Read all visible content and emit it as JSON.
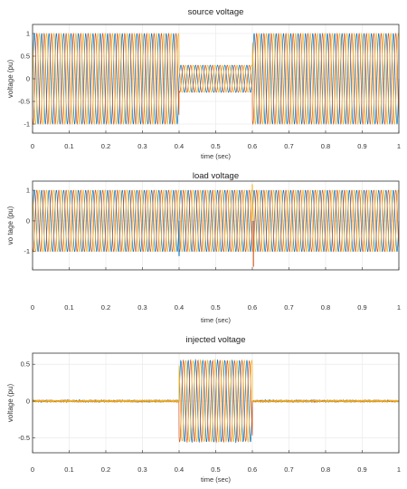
{
  "colors": {
    "phase_a": "#0072BD",
    "phase_b": "#D95319",
    "phase_c": "#EDB120",
    "grid": "#e6e6e6",
    "axis": "#333333"
  },
  "chart_data": [
    {
      "type": "line",
      "title": "source voltage",
      "xlabel": "time (sec)",
      "ylabel": "voltage (pu)",
      "xlim": [
        0,
        1
      ],
      "ylim": [
        -1.2,
        1.2
      ],
      "xticks": [
        0,
        0.1,
        0.2,
        0.3,
        0.4,
        0.5,
        0.6,
        0.7,
        0.8,
        0.9,
        1
      ],
      "xtick_labels": [
        "0",
        "0.1",
        "0.2",
        "0.3",
        "0.4",
        "0.5",
        "0.6",
        "0.7",
        "0.8",
        "0.9",
        "1"
      ],
      "yticks": [
        -1,
        -0.5,
        0,
        0.5,
        1
      ],
      "ytick_labels": [
        "-1",
        "-0.5",
        "0",
        "0.5",
        "1"
      ],
      "grid": true,
      "frequency_hz": 50,
      "phases_deg": [
        0,
        -120,
        120
      ],
      "series_colors": [
        "#0072BD",
        "#D95319",
        "#EDB120"
      ],
      "segments": [
        {
          "from": 0.0,
          "to": 0.4,
          "amplitude": 1.0
        },
        {
          "from": 0.4,
          "to": 0.6,
          "amplitude": 0.3
        },
        {
          "from": 0.6,
          "to": 1.0,
          "amplitude": 1.0
        }
      ],
      "noise": 0,
      "spikes": []
    },
    {
      "type": "line",
      "title": "load voltage",
      "xlabel": "time (sec)",
      "ylabel": "vo tage (pu)",
      "xlim": [
        0,
        1
      ],
      "ylim": [
        -1.6,
        1.3
      ],
      "xticks": [
        0,
        0.1,
        0.2,
        0.3,
        0.4,
        0.5,
        0.6,
        0.7,
        0.8,
        0.9,
        1
      ],
      "xtick_labels": [
        "0",
        "0.1",
        "0.2",
        "0.3",
        "0.4",
        "0.5",
        "0.6",
        "0.7",
        "0.8",
        "0.9",
        "1"
      ],
      "yticks": [
        -1,
        0,
        1
      ],
      "ytick_labels": [
        "-1",
        "0",
        "1"
      ],
      "grid": true,
      "frequency_hz": 50,
      "phases_deg": [
        0,
        -120,
        120
      ],
      "series_colors": [
        "#0072BD",
        "#D95319",
        "#EDB120"
      ],
      "segments": [
        {
          "from": 0.0,
          "to": 1.0,
          "amplitude": 1.0
        }
      ],
      "noise": 0,
      "spikes": [
        {
          "t": 0.4,
          "series": 0,
          "value": -1.15
        },
        {
          "t": 0.6,
          "series": 2,
          "value": 1.2
        },
        {
          "t": 0.603,
          "series": 1,
          "value": -1.5
        }
      ]
    },
    {
      "type": "line",
      "title": "injected voltage",
      "xlabel": "time (sec)",
      "ylabel": "voltage (pu)",
      "xlim": [
        0,
        1
      ],
      "ylim": [
        -0.7,
        0.65
      ],
      "xticks": [
        0,
        0.1,
        0.2,
        0.3,
        0.4,
        0.5,
        0.6,
        0.7,
        0.8,
        0.9,
        1
      ],
      "xtick_labels": [
        "0",
        "0.1",
        "0.2",
        "0.3",
        "0.4",
        "0.5",
        "0.6",
        "0.7",
        "0.8",
        "0.9",
        "1"
      ],
      "yticks": [
        -0.5,
        0,
        0.5
      ],
      "ytick_labels": [
        "-0.5",
        "0",
        "0.5"
      ],
      "grid": true,
      "frequency_hz": 50,
      "phases_deg": [
        0,
        -120,
        120
      ],
      "series_colors": [
        "#0072BD",
        "#D95319",
        "#EDB120"
      ],
      "segments": [
        {
          "from": 0.0,
          "to": 0.4,
          "amplitude": 0.0
        },
        {
          "from": 0.4,
          "to": 0.6,
          "amplitude": 0.55
        },
        {
          "from": 0.6,
          "to": 1.0,
          "amplitude": 0.0
        }
      ],
      "noise": 0.012,
      "spikes": []
    }
  ]
}
